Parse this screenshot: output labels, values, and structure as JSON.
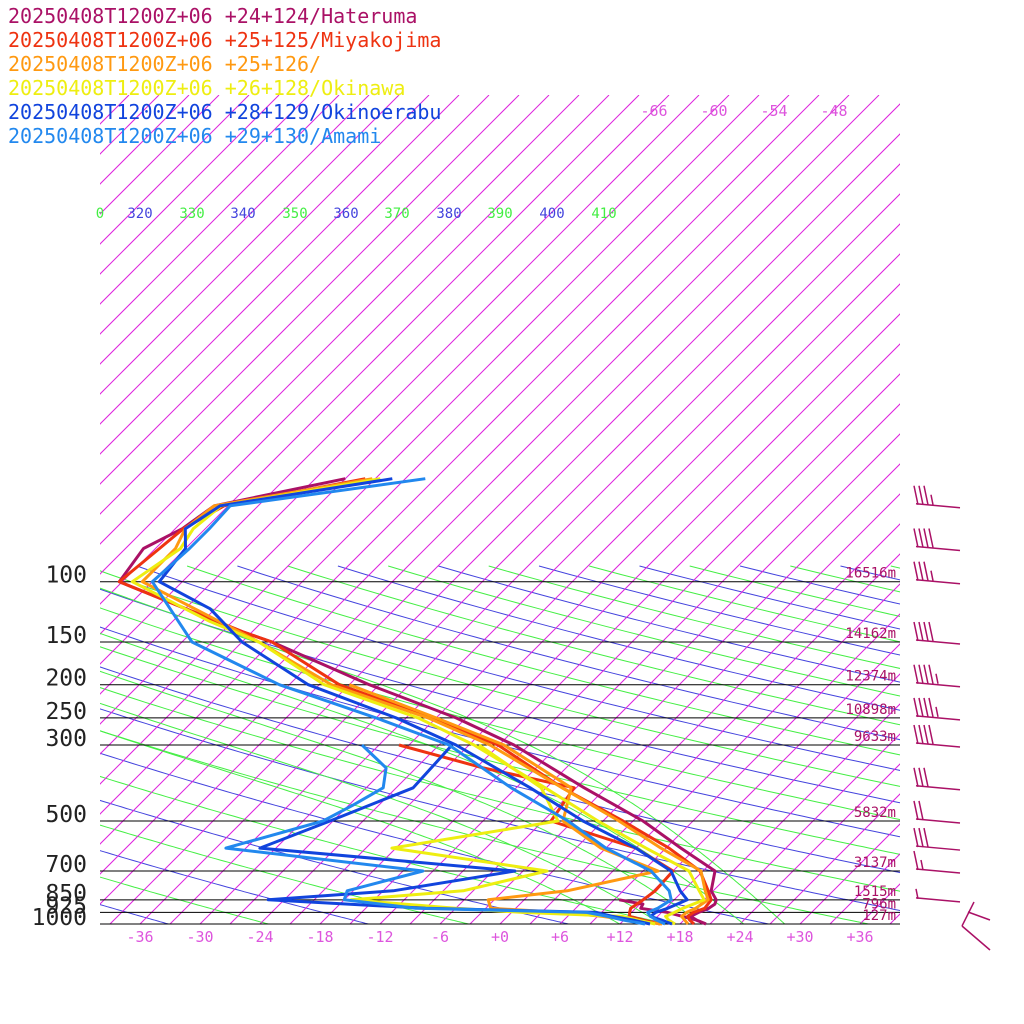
{
  "chart_data": {
    "type": "line",
    "title": "",
    "xlabel": "",
    "ylabel": "",
    "legend_position": "top-left",
    "grid": true,
    "x_unit": "°C",
    "xlim": [
      -40,
      40
    ],
    "pressure_range_hpa": [
      1000,
      100
    ],
    "y_scale": "log-pressure",
    "x_ticks": [
      "-36",
      "-30",
      "-24",
      "-18",
      "-12",
      "-6",
      "+0",
      "+6",
      "+12",
      "+18",
      "+24",
      "+30",
      "+36"
    ],
    "upper_temp_labels": [
      "-66",
      "-60",
      "-54",
      "-48"
    ],
    "pressure_levels": [
      {
        "p": 100,
        "label": "100",
        "height": "16516m"
      },
      {
        "p": 150,
        "label": "150",
        "height": "14162m"
      },
      {
        "p": 200,
        "label": "200",
        "height": "12374m"
      },
      {
        "p": 250,
        "label": "250",
        "height": "10898m"
      },
      {
        "p": 300,
        "label": "300",
        "height": "9633m"
      },
      {
        "p": 500,
        "label": "500",
        "height": "5832m"
      },
      {
        "p": 700,
        "label": "700",
        "height": "3137m"
      },
      {
        "p": 850,
        "label": "850",
        "height": "1515m"
      },
      {
        "p": 925,
        "label": "925",
        "height": "796m"
      },
      {
        "p": 1000,
        "label": "1000",
        "height": "127m"
      }
    ],
    "theta_labels": [
      {
        "label": "0",
        "color": "#44ee44"
      },
      {
        "label": "320",
        "color": "#4444dd"
      },
      {
        "label": "330",
        "color": "#44ee44"
      },
      {
        "label": "340",
        "color": "#4444dd"
      },
      {
        "label": "350",
        "color": "#44ee44"
      },
      {
        "label": "360",
        "color": "#4444dd"
      },
      {
        "label": "370",
        "color": "#44ee44"
      },
      {
        "label": "380",
        "color": "#4444dd"
      },
      {
        "label": "390",
        "color": "#44ee44"
      },
      {
        "label": "400",
        "color": "#4444dd"
      },
      {
        "label": "410",
        "color": "#44ee44"
      }
    ],
    "series": [
      {
        "name": "20250408T1200Z+06 +24+124/Hateruma",
        "color": "#aa1166",
        "temperature": [
          [
            1000,
            20.6
          ],
          [
            975,
            19.3
          ],
          [
            950,
            18.3
          ],
          [
            925,
            18.7
          ],
          [
            900,
            19.3
          ],
          [
            875,
            19.5
          ],
          [
            850,
            19.2
          ],
          [
            800,
            17.8
          ],
          [
            700,
            16.2
          ],
          [
            600,
            10.5
          ],
          [
            500,
            4.0
          ],
          [
            400,
            -5.2
          ],
          [
            300,
            -16.5
          ],
          [
            250,
            -25.0
          ],
          [
            200,
            -37.0
          ],
          [
            150,
            -51.0
          ],
          [
            140,
            -55.0
          ],
          [
            100,
            -72.3
          ],
          [
            80,
            -73.2
          ],
          [
            70,
            -71.3
          ],
          [
            60,
            -70.4
          ],
          [
            50,
            -60.0
          ]
        ],
        "dewpoint": [
          [
            1000,
            20.6
          ],
          [
            975,
            19.3
          ],
          [
            950,
            17.5
          ],
          [
            925,
            15.6
          ],
          [
            900,
            12.5
          ],
          [
            875,
            12.3
          ],
          [
            850,
            9.5
          ]
        ]
      },
      {
        "name": "20250408T1200Z+06 +25+125/Miyakojima",
        "color": "#ee3311",
        "temperature": [
          [
            1000,
            19.4
          ],
          [
            975,
            18.6
          ],
          [
            950,
            18.0
          ],
          [
            925,
            18.2
          ],
          [
            900,
            18.9
          ],
          [
            850,
            18.7
          ],
          [
            800,
            17.5
          ],
          [
            700,
            14.7
          ],
          [
            600,
            9.3
          ],
          [
            500,
            2.0
          ],
          [
            400,
            -7.4
          ],
          [
            300,
            -18.1
          ],
          [
            250,
            -27.5
          ],
          [
            200,
            -40.0
          ],
          [
            150,
            -51.0
          ],
          [
            140,
            -55.0
          ],
          [
            100,
            -72.3
          ],
          [
            80,
            -71.6
          ],
          [
            70,
            -71.2
          ],
          [
            60,
            -69.4
          ],
          [
            50,
            -58.0
          ]
        ],
        "dewpoint": [
          [
            1000,
            16.0
          ],
          [
            975,
            14.0
          ],
          [
            950,
            12.2
          ],
          [
            925,
            11.8
          ],
          [
            900,
            11.5
          ],
          [
            850,
            11.9
          ],
          [
            800,
            12.2
          ],
          [
            700,
            12.0
          ],
          [
            600,
            6.0
          ],
          [
            500,
            -5.2
          ],
          [
            400,
            -6.2
          ],
          [
            350,
            -17.3
          ],
          [
            300,
            -28.0
          ]
        ]
      },
      {
        "name": "20250408T1200Z+06 +25+126/",
        "color": "#ff9911",
        "temperature": [
          [
            1000,
            18.8
          ],
          [
            975,
            18.1
          ],
          [
            950,
            17.4
          ],
          [
            925,
            17.5
          ],
          [
            900,
            18.0
          ],
          [
            850,
            18.4
          ],
          [
            800,
            17.2
          ],
          [
            700,
            14.8
          ],
          [
            600,
            8.5
          ],
          [
            500,
            1.6
          ],
          [
            400,
            -7.4
          ],
          [
            300,
            -18.9
          ],
          [
            250,
            -27.8
          ],
          [
            200,
            -40.8
          ],
          [
            150,
            -52.3
          ],
          [
            100,
            -70.0
          ],
          [
            80,
            -70.0
          ],
          [
            70,
            -71.0
          ],
          [
            60,
            -70.4
          ],
          [
            50,
            -57.3
          ]
        ],
        "dewpoint": [
          [
            1000,
            16.2
          ],
          [
            975,
            12.5
          ],
          [
            950,
            9.5
          ],
          [
            925,
            5.0
          ],
          [
            900,
            -2.5
          ],
          [
            850,
            -3.6
          ],
          [
            800,
            3.4
          ],
          [
            700,
            10.5
          ],
          [
            600,
            2.5
          ],
          [
            500,
            -4.0
          ],
          [
            400,
            -6.5
          ],
          [
            300,
            -17.5
          ],
          [
            250,
            -27.0
          ],
          [
            200,
            -39.0
          ]
        ]
      },
      {
        "name": "20250408T1200Z+06 +26+128/Okinawa",
        "color": "#eeee11",
        "temperature": [
          [
            1000,
            17.5
          ],
          [
            975,
            16.5
          ],
          [
            950,
            15.8
          ],
          [
            925,
            16.3
          ],
          [
            900,
            16.7
          ],
          [
            850,
            18.0
          ],
          [
            800,
            16.6
          ],
          [
            700,
            13.6
          ],
          [
            600,
            7.0
          ],
          [
            500,
            -0.5
          ],
          [
            400,
            -9.1
          ],
          [
            300,
            -20.5
          ],
          [
            250,
            -28.8
          ],
          [
            200,
            -41.5
          ],
          [
            150,
            -52.3
          ],
          [
            130,
            -59.5
          ],
          [
            100,
            -71.0
          ],
          [
            80,
            -69.5
          ],
          [
            70,
            -70.2
          ],
          [
            60,
            -69.7
          ],
          [
            50,
            -56.5
          ]
        ],
        "dewpoint": [
          [
            1000,
            15.5
          ],
          [
            975,
            13.5
          ],
          [
            950,
            11.5
          ],
          [
            925,
            1.0
          ],
          [
            900,
            -6.0
          ],
          [
            850,
            -17.3
          ],
          [
            800,
            -7.0
          ],
          [
            700,
            -0.6
          ],
          [
            600,
            -18.4
          ],
          [
            500,
            -4.5
          ],
          [
            400,
            -9.5
          ],
          [
            300,
            -20.0
          ]
        ]
      },
      {
        "name": "20250408T1200Z+06 +28+129/Okinoerabu",
        "color": "#1144dd",
        "temperature": [
          [
            1000,
            17.2
          ],
          [
            975,
            15.8
          ],
          [
            950,
            14.3
          ],
          [
            925,
            14.4
          ],
          [
            900,
            15.2
          ],
          [
            850,
            16.3
          ],
          [
            800,
            14.7
          ],
          [
            700,
            11.8
          ],
          [
            600,
            6.0
          ],
          [
            500,
            -2.0
          ],
          [
            400,
            -10.6
          ],
          [
            300,
            -22.3
          ],
          [
            250,
            -31.0
          ],
          [
            200,
            -43.1
          ],
          [
            150,
            -54.0
          ],
          [
            120,
            -60.5
          ],
          [
            100,
            -68.3
          ],
          [
            80,
            -69.0
          ],
          [
            70,
            -71.0
          ],
          [
            60,
            -69.8
          ],
          [
            50,
            -55.3
          ]
        ],
        "dewpoint": [
          [
            1000,
            15.0
          ],
          [
            975,
            13.0
          ],
          [
            950,
            10.5
          ],
          [
            925,
            8.5
          ],
          [
            900,
            -9.0
          ],
          [
            850,
            -25.6
          ],
          [
            800,
            -14.0
          ],
          [
            700,
            -3.8
          ],
          [
            600,
            -31.6
          ],
          [
            500,
            -27.3
          ],
          [
            400,
            -22.3
          ],
          [
            300,
            -22.7
          ]
        ]
      },
      {
        "name": "20250408T1200Z+06 +29+130/Amami",
        "color": "#2288ee",
        "temperature": [
          [
            1000,
            16.5
          ],
          [
            975,
            15.3
          ],
          [
            950,
            14.3
          ],
          [
            925,
            13.6
          ],
          [
            900,
            14.2
          ],
          [
            850,
            14.7
          ],
          [
            800,
            13.6
          ],
          [
            700,
            9.8
          ],
          [
            600,
            3.0
          ],
          [
            500,
            -3.5
          ],
          [
            400,
            -12.5
          ],
          [
            300,
            -23.0
          ],
          [
            250,
            -33.0
          ],
          [
            200,
            -46.0
          ],
          [
            150,
            -59.0
          ],
          [
            100,
            -69.0
          ],
          [
            80,
            -68.6
          ],
          [
            70,
            -68.6
          ],
          [
            60,
            -68.8
          ],
          [
            50,
            -52.0
          ]
        ],
        "dewpoint": [
          [
            1000,
            14.5
          ],
          [
            975,
            12.0
          ],
          [
            950,
            10.0
          ],
          [
            925,
            7.5
          ],
          [
            900,
            -10.0
          ],
          [
            850,
            -18.0
          ],
          [
            800,
            -18.6
          ],
          [
            700,
            -13.0
          ],
          [
            600,
            -35.0
          ],
          [
            500,
            -28.0
          ],
          [
            450,
            -26.6
          ],
          [
            400,
            -25.3
          ],
          [
            350,
            -27.0
          ],
          [
            300,
            -31.7
          ]
        ]
      }
    ],
    "wind_barbs": {
      "color": "#aa1166",
      "levels": [
        {
          "p": 60,
          "full": 3,
          "half": 1
        },
        {
          "p": 80,
          "full": 4,
          "half": 0
        },
        {
          "p": 100,
          "full": 3,
          "half": 1
        },
        {
          "p": 150,
          "full": 4,
          "half": 0
        },
        {
          "p": 200,
          "full": 4,
          "half": 1
        },
        {
          "p": 250,
          "full": 4,
          "half": 1
        },
        {
          "p": 300,
          "full": 4,
          "half": 0
        },
        {
          "p": 400,
          "full": 3,
          "half": 0
        },
        {
          "p": 500,
          "full": 2,
          "half": 0
        },
        {
          "p": 600,
          "full": 3,
          "half": 0
        },
        {
          "p": 700,
          "full": 1,
          "half": 1
        },
        {
          "p": 850,
          "full": 0,
          "half": 1
        }
      ],
      "surface": {
        "full": 2,
        "half": 0
      }
    }
  }
}
